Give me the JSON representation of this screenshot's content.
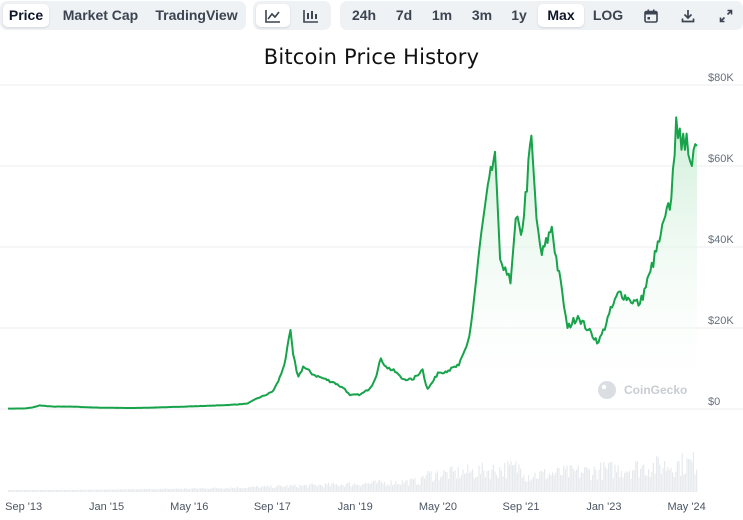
{
  "toolbar": {
    "view_tabs": [
      "Price",
      "Market Cap",
      "TradingView"
    ],
    "active_view": "Price",
    "chart_modes": [
      "line-chart-icon",
      "candlestick-chart-icon"
    ],
    "ranges": [
      "24h",
      "7d",
      "1m",
      "3m",
      "1y",
      "Max",
      "LOG"
    ],
    "active_range": "Max",
    "tools": [
      "calendar-icon",
      "download-icon",
      "fullscreen-icon"
    ]
  },
  "colors": {
    "line": "#16a34a",
    "fill_top": "#c8ecd3",
    "volume": "#e6e9ed",
    "grid": "#eceef1",
    "accent": "#0f172a"
  },
  "watermark": "CoinGecko",
  "chart_data": {
    "type": "area",
    "title": "Bitcoin Price History",
    "xlabel": "",
    "ylabel": "",
    "y_ticks": [
      "$80K",
      "$60K",
      "$40K",
      "$20K",
      "$0"
    ],
    "y_tick_values": [
      80000,
      60000,
      40000,
      20000,
      0
    ],
    "ylim": [
      0,
      80000
    ],
    "y_axis_side": "right",
    "x_ticks": [
      "Sep '13",
      "Jan '15",
      "May '16",
      "Sep '17",
      "Jan '19",
      "May '20",
      "Sep '21",
      "Jan '23",
      "May '24"
    ],
    "grid": true,
    "series": [
      {
        "values": [
          [
            "2013-06",
            100
          ],
          [
            "2013-09",
            130
          ],
          [
            "2013-12",
            900
          ],
          [
            "2014-03",
            580
          ],
          [
            "2014-06",
            620
          ],
          [
            "2014-12",
            320
          ],
          [
            "2015-06",
            240
          ],
          [
            "2015-12",
            430
          ],
          [
            "2016-06",
            680
          ],
          [
            "2016-12",
            960
          ],
          [
            "2017-04",
            1300
          ],
          [
            "2017-06",
            2600
          ],
          [
            "2017-09",
            4300
          ],
          [
            "2017-11",
            9800
          ],
          [
            "2017-12-17",
            19500
          ],
          [
            "2018-01",
            13500
          ],
          [
            "2018-02",
            8000
          ],
          [
            "2018-03",
            10500
          ],
          [
            "2018-05",
            8500
          ],
          [
            "2018-07",
            7500
          ],
          [
            "2018-09",
            6500
          ],
          [
            "2018-11",
            5000
          ],
          [
            "2018-12",
            3400
          ],
          [
            "2019-02",
            3600
          ],
          [
            "2019-04",
            5300
          ],
          [
            "2019-06",
            12500
          ],
          [
            "2019-07",
            10500
          ],
          [
            "2019-09",
            9000
          ],
          [
            "2019-10",
            7500
          ],
          [
            "2019-12",
            7200
          ],
          [
            "2020-02",
            9800
          ],
          [
            "2020-03",
            5000
          ],
          [
            "2020-05",
            9000
          ],
          [
            "2020-07",
            9500
          ],
          [
            "2020-09",
            10800
          ],
          [
            "2020-11",
            18000
          ],
          [
            "2020-12",
            28000
          ],
          [
            "2021-01",
            40000
          ],
          [
            "2021-02",
            50000
          ],
          [
            "2021-04",
            63500
          ],
          [
            "2021-05",
            37000
          ],
          [
            "2021-06",
            35000
          ],
          [
            "2021-07",
            31000
          ],
          [
            "2021-08",
            47000
          ],
          [
            "2021-09",
            43000
          ],
          [
            "2021-11",
            67500
          ],
          [
            "2021-12",
            47000
          ],
          [
            "2022-01",
            38000
          ],
          [
            "2022-03",
            45000
          ],
          [
            "2022-05",
            29000
          ],
          [
            "2022-06",
            20000
          ],
          [
            "2022-08",
            23000
          ],
          [
            "2022-10",
            19500
          ],
          [
            "2022-12",
            16500
          ],
          [
            "2023-02",
            23500
          ],
          [
            "2023-04",
            29000
          ],
          [
            "2023-06",
            27000
          ],
          [
            "2023-08",
            26000
          ],
          [
            "2023-10",
            34000
          ],
          [
            "2023-12",
            43000
          ],
          [
            "2024-02",
            52000
          ],
          [
            "2024-03",
            72000
          ],
          [
            "2024-04",
            64000
          ],
          [
            "2024-05",
            68000
          ],
          [
            "2024-06",
            60000
          ],
          [
            "2024-07",
            65000
          ]
        ]
      }
    ]
  }
}
